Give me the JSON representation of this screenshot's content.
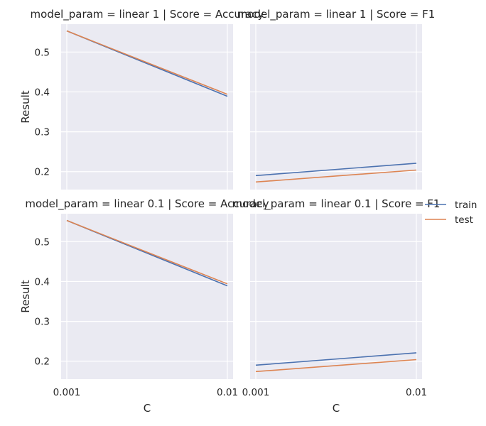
{
  "chart_data": {
    "type": "line",
    "xlabel": "C",
    "ylabel": "Result",
    "x": [
      "0.001",
      "0.01"
    ],
    "ylim": [
      0.155,
      0.57
    ],
    "yticks": [
      0.2,
      0.3,
      0.4,
      0.5
    ],
    "yticklabels": [
      "0.2",
      "0.3",
      "0.4",
      "0.5"
    ],
    "grid": true,
    "legend_placement": "center-right",
    "legend": [
      {
        "name": "train",
        "color": "#4c72b0"
      },
      {
        "name": "test",
        "color": "#dd8452"
      }
    ],
    "panels": [
      {
        "title": "model_param = linear 1 | Score = Accuracy",
        "series": [
          {
            "name": "train",
            "values": [
              0.553,
              0.389
            ]
          },
          {
            "name": "test",
            "values": [
              0.553,
              0.394
            ]
          }
        ]
      },
      {
        "title": "model_param = linear 1 | Score = F1",
        "series": [
          {
            "name": "train",
            "values": [
              0.19,
              0.221
            ]
          },
          {
            "name": "test",
            "values": [
              0.174,
              0.204
            ]
          }
        ]
      },
      {
        "title": "model_param = linear 0.1 | Score = Accuracy",
        "series": [
          {
            "name": "train",
            "values": [
              0.553,
              0.389
            ]
          },
          {
            "name": "test",
            "values": [
              0.553,
              0.394
            ]
          }
        ]
      },
      {
        "title": "model_param = linear 0.1 | Score = F1",
        "series": [
          {
            "name": "train",
            "values": [
              0.19,
              0.221
            ]
          },
          {
            "name": "test",
            "values": [
              0.174,
              0.204
            ]
          }
        ]
      }
    ]
  }
}
